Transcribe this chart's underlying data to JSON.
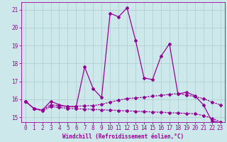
{
  "xlabel": "Windchill (Refroidissement éolien,°C)",
  "bg_color": "#cce8ea",
  "line_color": "#990099",
  "xlim": [
    -0.5,
    23.5
  ],
  "ylim": [
    14.75,
    21.4
  ],
  "yticks": [
    15,
    16,
    17,
    18,
    19,
    20,
    21
  ],
  "xticks": [
    0,
    1,
    2,
    3,
    4,
    5,
    6,
    7,
    8,
    9,
    10,
    11,
    12,
    13,
    14,
    15,
    16,
    17,
    18,
    19,
    20,
    21,
    22,
    23
  ],
  "series1_x": [
    0,
    1,
    2,
    3,
    4,
    5,
    6,
    7,
    8,
    9,
    10,
    11,
    12,
    13,
    14,
    15,
    16,
    17,
    18,
    19,
    20,
    21,
    22,
    23
  ],
  "series1_y": [
    15.9,
    15.5,
    15.4,
    15.9,
    15.7,
    15.6,
    15.6,
    17.8,
    16.6,
    16.1,
    20.8,
    20.6,
    21.1,
    19.3,
    17.2,
    17.1,
    18.4,
    19.1,
    16.3,
    16.4,
    16.2,
    15.7,
    14.8,
    14.7
  ],
  "series2_x": [
    0,
    1,
    2,
    3,
    4,
    5,
    6,
    7,
    8,
    9,
    10,
    11,
    12,
    13,
    14,
    15,
    16,
    17,
    18,
    19,
    20,
    21,
    22,
    23
  ],
  "series2_y": [
    15.9,
    15.5,
    15.4,
    15.7,
    15.65,
    15.6,
    15.62,
    15.64,
    15.66,
    15.72,
    15.85,
    15.95,
    16.05,
    16.08,
    16.12,
    16.18,
    16.22,
    16.28,
    16.32,
    16.25,
    16.15,
    16.05,
    15.85,
    15.7
  ],
  "series3_x": [
    0,
    1,
    2,
    3,
    4,
    5,
    6,
    7,
    8,
    9,
    10,
    11,
    12,
    13,
    14,
    15,
    16,
    17,
    18,
    19,
    20,
    21,
    22,
    23
  ],
  "series3_y": [
    15.9,
    15.5,
    15.35,
    15.6,
    15.55,
    15.5,
    15.48,
    15.46,
    15.44,
    15.42,
    15.4,
    15.38,
    15.36,
    15.34,
    15.32,
    15.3,
    15.28,
    15.26,
    15.24,
    15.22,
    15.2,
    15.1,
    14.95,
    14.75
  ],
  "grid_color": "#aacccc",
  "marker": "D",
  "markersize": 2.0,
  "linewidth": 0.9
}
